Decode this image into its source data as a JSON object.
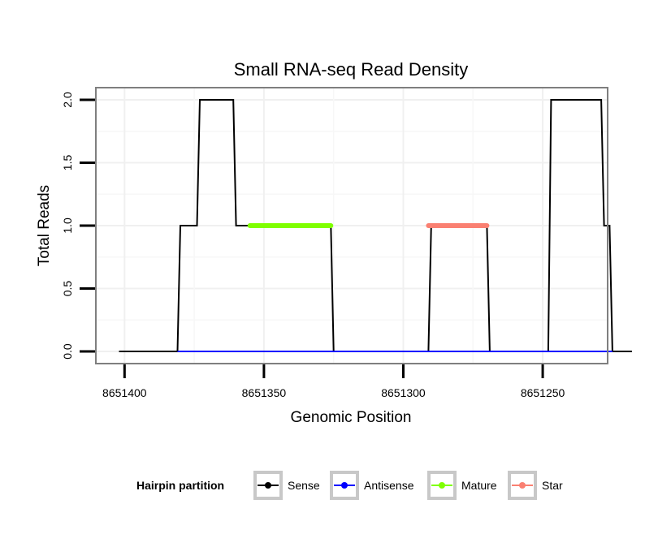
{
  "chart_data": {
    "type": "line",
    "title": "Small RNA-seq Read Density",
    "xlabel": "Genomic Position",
    "ylabel": "Total Reads",
    "x_reversed": true,
    "xlim": [
      8651410,
      8651227
    ],
    "ylim": [
      -0.09,
      2.09
    ],
    "x_ticks": [
      8651400,
      8651350,
      8651300,
      8651250
    ],
    "x_tick_labels": [
      "8651400",
      "8651350",
      "8651300",
      "8651250"
    ],
    "y_ticks": [
      0.0,
      0.5,
      1.0,
      1.5,
      2.0
    ],
    "y_tick_labels": [
      "0.0",
      "0.5",
      "1.0",
      "1.5",
      "2.0"
    ],
    "grid": true,
    "legend": {
      "title": "Hairpin partition",
      "position": "bottom",
      "entries": [
        "Sense",
        "Antisense",
        "Mature",
        "Star"
      ]
    },
    "series": [
      {
        "name": "Sense",
        "color": "#000000",
        "x": [
          8651402,
          8651381,
          8651380,
          8651374,
          8651373,
          8651361,
          8651360,
          8651355,
          8651326,
          8651325,
          8651291,
          8651290,
          8651270,
          8651269,
          8651248,
          8651247,
          8651229,
          8651228,
          8651226,
          8651225,
          8651218
        ],
        "y": [
          0,
          0,
          1,
          1,
          2,
          2,
          1,
          1,
          1,
          0,
          0,
          1,
          1,
          0,
          0,
          2,
          2,
          1,
          1,
          0,
          0
        ]
      },
      {
        "name": "Antisense",
        "color": "#0000ff",
        "x": [
          8651381,
          8651225
        ],
        "y": [
          0,
          0
        ]
      },
      {
        "name": "Mature",
        "color": "#7fff00",
        "x": [
          8651355,
          8651326
        ],
        "y": [
          1,
          1
        ]
      },
      {
        "name": "Star",
        "color": "#fa8072",
        "x": [
          8651291,
          8651270
        ],
        "y": [
          1,
          1
        ]
      }
    ]
  }
}
